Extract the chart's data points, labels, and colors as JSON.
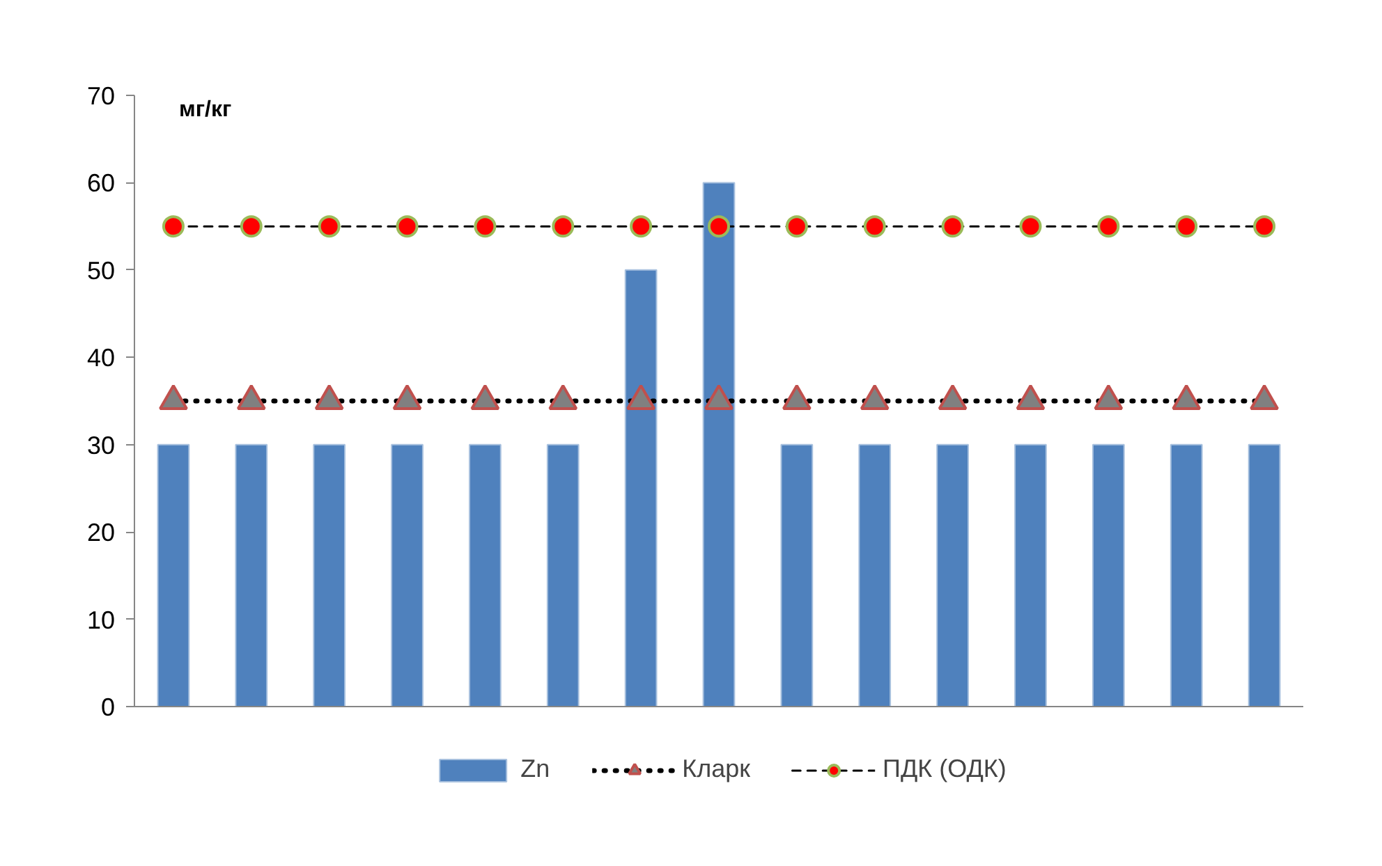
{
  "chart_data": {
    "type": "bar",
    "ylabel": "мг/кг",
    "categories": [
      null,
      null,
      null,
      null,
      null,
      null,
      null,
      null,
      null,
      null,
      null,
      null,
      null,
      null,
      null
    ],
    "series": [
      {
        "name": "Zn",
        "color": "#4f81bd",
        "values": [
          30,
          30,
          30,
          30,
          30,
          30,
          50,
          60,
          30,
          30,
          30,
          30,
          30,
          30,
          30
        ]
      },
      {
        "name": "Кларк",
        "type": "line",
        "color": "#808080",
        "marker": "triangle",
        "line_style": "dotted",
        "values": [
          35,
          35,
          35,
          35,
          35,
          35,
          35,
          35,
          35,
          35,
          35,
          35,
          35,
          35,
          35
        ]
      },
      {
        "name": "ПДК (ОДК)",
        "type": "line",
        "color": "#ff0000",
        "marker": "circle",
        "line_style": "dashed",
        "values": [
          55,
          55,
          55,
          55,
          55,
          55,
          55,
          55,
          55,
          55,
          55,
          55,
          55,
          55,
          55
        ]
      }
    ],
    "ylim": [
      0,
      70
    ],
    "yticks": [
      0,
      10,
      20,
      30,
      40,
      50,
      60,
      70
    ],
    "grid": false,
    "legend": "bottom",
    "tick_labels": "y"
  }
}
